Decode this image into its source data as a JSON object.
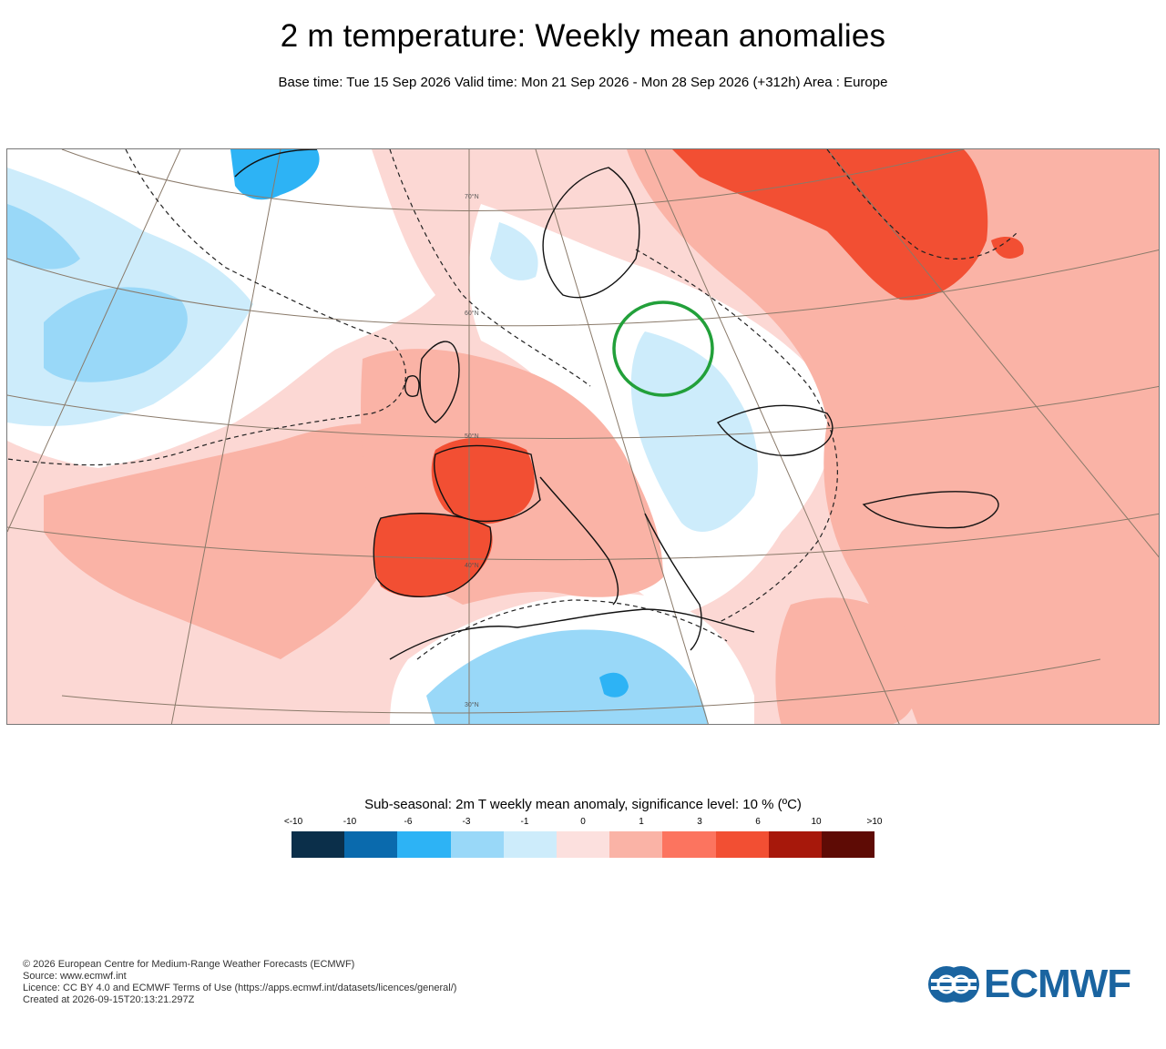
{
  "header": {
    "title": "2 m temperature: Weekly mean anomalies",
    "subtitle": "Base time: Tue 15 Sep 2026 Valid time: Mon 21 Sep 2026 - Mon 28 Sep 2026 (+312h) Area : Europe"
  },
  "map": {
    "latitude_labels": [
      "70°N",
      "60°N",
      "50°N",
      "40°N",
      "30°N"
    ],
    "highlight": "circle-over-belarus",
    "colors": {
      "highlight_circle": "#22a03a",
      "coastline": "#111111",
      "graticule": "#8a7a6a"
    }
  },
  "legend": {
    "title": "Sub-seasonal: 2m T weekly mean anomaly, significance level: 10 % (ºC)",
    "ticks": [
      "<-10",
      "-10",
      "-6",
      "-3",
      "-1",
      "0",
      "1",
      "3",
      "6",
      "10",
      ">10"
    ],
    "colors": [
      "#0b2f4a",
      "#0a6aad",
      "#2db3f5",
      "#99d8f8",
      "#cdecfb",
      "#fce0de",
      "#fab3a6",
      "#fc745f",
      "#f24f33",
      "#a7180b",
      "#5e0b05"
    ]
  },
  "footer": {
    "line1": "© 2026 European Centre for Medium-Range Weather Forecasts (ECMWF)",
    "line2": "Source: www.ecmwf.int",
    "line3": "Licence: CC BY 4.0 and ECMWF Terms of Use (https://apps.ecmwf.int/datasets/licences/general/)",
    "line4": "Created at 2026-09-15T20:13:21.297Z"
  },
  "logo": {
    "text": "ECMWF",
    "icon": "ecmwf-logo-icon",
    "color": "#1a64a0"
  }
}
